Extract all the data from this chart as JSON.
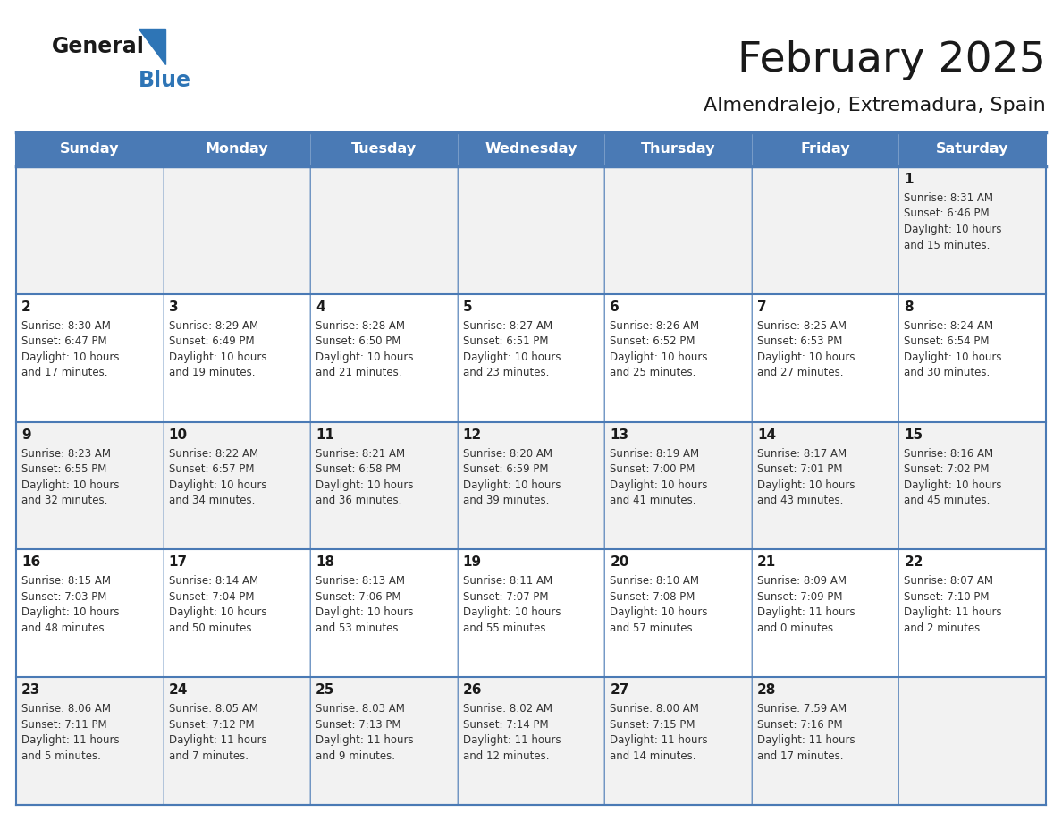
{
  "title": "February 2025",
  "subtitle": "Almendralejo, Extremadura, Spain",
  "header_bg": "#4a7ab5",
  "header_text": "#ffffff",
  "row_bg": [
    "#f2f2f2",
    "#ffffff"
  ],
  "border_color": "#4a7ab5",
  "thin_border": "#cccccc",
  "day_headers": [
    "Sunday",
    "Monday",
    "Tuesday",
    "Wednesday",
    "Thursday",
    "Friday",
    "Saturday"
  ],
  "title_color": "#1a1a1a",
  "subtitle_color": "#1a1a1a",
  "day_number_color": "#1a1a1a",
  "cell_text_color": "#333333",
  "logo_general_color": "#1a1a1a",
  "logo_blue_color": "#2e75b6",
  "calendar": [
    [
      null,
      null,
      null,
      null,
      null,
      null,
      {
        "day": 1,
        "sunrise": "8:31 AM",
        "sunset": "6:46 PM",
        "daylight": "10 hours\nand 15 minutes."
      }
    ],
    [
      {
        "day": 2,
        "sunrise": "8:30 AM",
        "sunset": "6:47 PM",
        "daylight": "10 hours\nand 17 minutes."
      },
      {
        "day": 3,
        "sunrise": "8:29 AM",
        "sunset": "6:49 PM",
        "daylight": "10 hours\nand 19 minutes."
      },
      {
        "day": 4,
        "sunrise": "8:28 AM",
        "sunset": "6:50 PM",
        "daylight": "10 hours\nand 21 minutes."
      },
      {
        "day": 5,
        "sunrise": "8:27 AM",
        "sunset": "6:51 PM",
        "daylight": "10 hours\nand 23 minutes."
      },
      {
        "day": 6,
        "sunrise": "8:26 AM",
        "sunset": "6:52 PM",
        "daylight": "10 hours\nand 25 minutes."
      },
      {
        "day": 7,
        "sunrise": "8:25 AM",
        "sunset": "6:53 PM",
        "daylight": "10 hours\nand 27 minutes."
      },
      {
        "day": 8,
        "sunrise": "8:24 AM",
        "sunset": "6:54 PM",
        "daylight": "10 hours\nand 30 minutes."
      }
    ],
    [
      {
        "day": 9,
        "sunrise": "8:23 AM",
        "sunset": "6:55 PM",
        "daylight": "10 hours\nand 32 minutes."
      },
      {
        "day": 10,
        "sunrise": "8:22 AM",
        "sunset": "6:57 PM",
        "daylight": "10 hours\nand 34 minutes."
      },
      {
        "day": 11,
        "sunrise": "8:21 AM",
        "sunset": "6:58 PM",
        "daylight": "10 hours\nand 36 minutes."
      },
      {
        "day": 12,
        "sunrise": "8:20 AM",
        "sunset": "6:59 PM",
        "daylight": "10 hours\nand 39 minutes."
      },
      {
        "day": 13,
        "sunrise": "8:19 AM",
        "sunset": "7:00 PM",
        "daylight": "10 hours\nand 41 minutes."
      },
      {
        "day": 14,
        "sunrise": "8:17 AM",
        "sunset": "7:01 PM",
        "daylight": "10 hours\nand 43 minutes."
      },
      {
        "day": 15,
        "sunrise": "8:16 AM",
        "sunset": "7:02 PM",
        "daylight": "10 hours\nand 45 minutes."
      }
    ],
    [
      {
        "day": 16,
        "sunrise": "8:15 AM",
        "sunset": "7:03 PM",
        "daylight": "10 hours\nand 48 minutes."
      },
      {
        "day": 17,
        "sunrise": "8:14 AM",
        "sunset": "7:04 PM",
        "daylight": "10 hours\nand 50 minutes."
      },
      {
        "day": 18,
        "sunrise": "8:13 AM",
        "sunset": "7:06 PM",
        "daylight": "10 hours\nand 53 minutes."
      },
      {
        "day": 19,
        "sunrise": "8:11 AM",
        "sunset": "7:07 PM",
        "daylight": "10 hours\nand 55 minutes."
      },
      {
        "day": 20,
        "sunrise": "8:10 AM",
        "sunset": "7:08 PM",
        "daylight": "10 hours\nand 57 minutes."
      },
      {
        "day": 21,
        "sunrise": "8:09 AM",
        "sunset": "7:09 PM",
        "daylight": "11 hours\nand 0 minutes."
      },
      {
        "day": 22,
        "sunrise": "8:07 AM",
        "sunset": "7:10 PM",
        "daylight": "11 hours\nand 2 minutes."
      }
    ],
    [
      {
        "day": 23,
        "sunrise": "8:06 AM",
        "sunset": "7:11 PM",
        "daylight": "11 hours\nand 5 minutes."
      },
      {
        "day": 24,
        "sunrise": "8:05 AM",
        "sunset": "7:12 PM",
        "daylight": "11 hours\nand 7 minutes."
      },
      {
        "day": 25,
        "sunrise": "8:03 AM",
        "sunset": "7:13 PM",
        "daylight": "11 hours\nand 9 minutes."
      },
      {
        "day": 26,
        "sunrise": "8:02 AM",
        "sunset": "7:14 PM",
        "daylight": "11 hours\nand 12 minutes."
      },
      {
        "day": 27,
        "sunrise": "8:00 AM",
        "sunset": "7:15 PM",
        "daylight": "11 hours\nand 14 minutes."
      },
      {
        "day": 28,
        "sunrise": "7:59 AM",
        "sunset": "7:16 PM",
        "daylight": "11 hours\nand 17 minutes."
      },
      null
    ]
  ]
}
